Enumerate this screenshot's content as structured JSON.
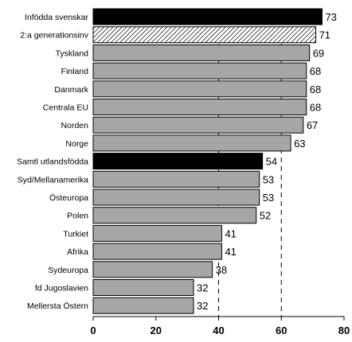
{
  "chart_data": {
    "type": "bar",
    "orientation": "horizontal",
    "categories": [
      "Infödda svenskar",
      "2:a generationsinv",
      "Tyskland",
      "Finland",
      "Danmark",
      "Centrala EU",
      "Norden",
      "Norge",
      "Samtl utlandsfödda",
      "Syd/Mellanamerika",
      "Östeuropa",
      "Polen",
      "Turkiet",
      "Afrika",
      "Sydeuropa",
      "fd Jugoslavien",
      "Mellersta Östern"
    ],
    "values": [
      73,
      71,
      69,
      68,
      68,
      68,
      67,
      63,
      54,
      53,
      53,
      52,
      41,
      41,
      38,
      32,
      32
    ],
    "value_labels": [
      "73",
      "71",
      "69",
      "68",
      "68",
      "68",
      "67",
      "63",
      "54",
      "53",
      "53",
      "52",
      "41",
      "41",
      "38",
      "32",
      "32"
    ],
    "bar_styles": [
      "black",
      "hatched",
      "gray",
      "gray",
      "gray",
      "gray",
      "gray",
      "gray",
      "black",
      "gray",
      "gray",
      "gray",
      "gray",
      "gray",
      "gray",
      "gray",
      "gray"
    ],
    "xlim": [
      0,
      80
    ],
    "x_ticks": [
      0,
      20,
      40,
      60,
      80
    ],
    "x_tick_labels": [
      "0",
      "20",
      "40",
      "60",
      "80"
    ],
    "reference_lines": [
      40,
      60
    ],
    "colors": {
      "black": "#000000",
      "gray": "#a6a6a6",
      "axis": "#000000"
    }
  }
}
